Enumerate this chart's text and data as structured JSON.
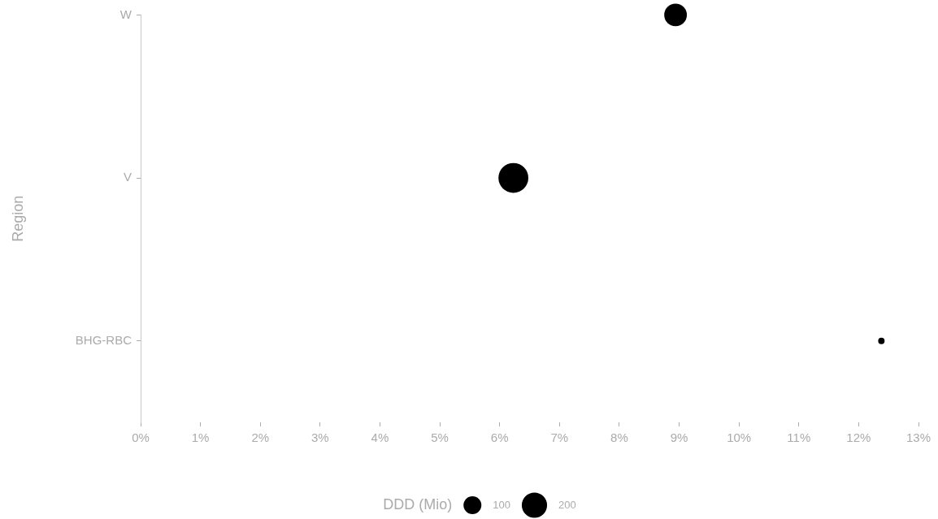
{
  "chart_data": {
    "type": "bubble",
    "orientation": "horizontal",
    "ylabel": "Region",
    "legend_title": "DDD (Mio)",
    "grid": false,
    "categories": [
      "W",
      "V",
      "BHG-RBC"
    ],
    "xlim": [
      0,
      13
    ],
    "xticks": [
      {
        "value": 0,
        "label": "0%"
      },
      {
        "value": 1,
        "label": "1%"
      },
      {
        "value": 2,
        "label": "2%"
      },
      {
        "value": 3,
        "label": "3%"
      },
      {
        "value": 4,
        "label": "4%"
      },
      {
        "value": 5,
        "label": "5%"
      },
      {
        "value": 6,
        "label": "6%"
      },
      {
        "value": 7,
        "label": "7%"
      },
      {
        "value": 8,
        "label": "8%"
      },
      {
        "value": 9,
        "label": "9%"
      },
      {
        "value": 10,
        "label": "10%"
      },
      {
        "value": 11,
        "label": "11%"
      },
      {
        "value": 12,
        "label": "12%"
      },
      {
        "value": 13,
        "label": "13%"
      }
    ],
    "series": [
      {
        "color": "#000000",
        "values": [
          8.94,
          6.23,
          12.38
        ],
        "sizes": [
          160,
          280,
          13
        ]
      }
    ],
    "size_legend": [
      100,
      200
    ]
  }
}
